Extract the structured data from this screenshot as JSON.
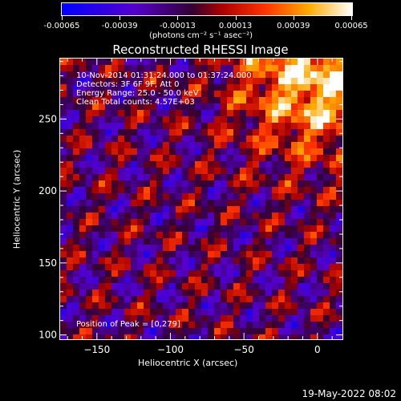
{
  "colorbar": {
    "ticks": [
      "-0.00065",
      "-0.00039",
      "-0.00013",
      "0.00013",
      "0.00039",
      "0.00065"
    ],
    "units": "(photons cm⁻² s⁻¹ asec⁻²)"
  },
  "chart_data": {
    "type": "heatmap",
    "title": "Reconstructed RHESSI Image",
    "xlabel": "Heliocentric X (arcsec)",
    "ylabel": "Heliocentric Y (arcsec)",
    "xlim": [
      -175,
      17
    ],
    "ylim": [
      97,
      292
    ],
    "xticks": [
      -150,
      -100,
      -50,
      0
    ],
    "xtick_labels": [
      "−150",
      "−100",
      "−50",
      "0"
    ],
    "yticks": [
      100,
      150,
      200,
      250
    ],
    "ytick_labels": [
      "100",
      "150",
      "200",
      "250"
    ],
    "colorscale": {
      "min": -0.00065,
      "max": 0.00065,
      "palette": "blue-purple-red-orange-yellow-white"
    },
    "peak": {
      "x": 0,
      "y": 279
    },
    "annotations": {
      "time": "10-Nov-2014 01:31:24.000 to 01:37:24.000",
      "detectors": "Detectors: 3F 6F 9F, Att 0",
      "energy": "Energy Range: 25.0 - 50.0 keV",
      "method": "Clean     Total counts: 4.57E+03",
      "peak_label": "Position of Peak = [0,279]"
    }
  },
  "timestamp": "19-May-2022 08:02"
}
